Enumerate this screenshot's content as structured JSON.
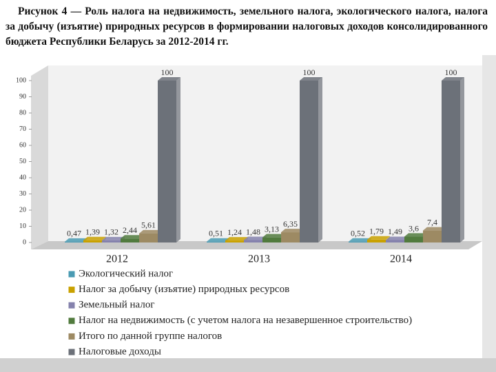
{
  "chart_data": {
    "type": "bar",
    "title": "Рисунок 4 — Роль налога на недвижимость, земельного налога, экологического налога, налога за добычу (изъятие) природных ресурсов в формировании налоговых доходов консолидированного бюджета Республики Беларусь за 2012-2014 гг.",
    "categories": [
      "2012",
      "2013",
      "2014"
    ],
    "series": [
      {
        "name": "Экологический налог",
        "color": "#4a9bb3",
        "values": [
          0.47,
          0.51,
          0.52
        ],
        "value_labels": [
          "0,47",
          "0,51",
          "0,52"
        ]
      },
      {
        "name": "Налог за добычу (изъятие) природных ресурсов",
        "color": "#c9a100",
        "values": [
          1.39,
          1.24,
          1.79
        ],
        "value_labels": [
          "1,39",
          "1,24",
          "1,79"
        ]
      },
      {
        "name": "Земельный налог",
        "color": "#8582ad",
        "values": [
          1.32,
          1.48,
          1.49
        ],
        "value_labels": [
          "1,32",
          "1,48",
          "1,49"
        ]
      },
      {
        "name": "Налог на недвижимость (с учетом налога на незавершенное строительство)",
        "color": "#517b3e",
        "values": [
          2.44,
          3.13,
          3.6
        ],
        "value_labels": [
          "2,44",
          "3,13",
          "3,6"
        ]
      },
      {
        "name": "Итого по данной группе налогов",
        "color": "#9d8a63",
        "values": [
          5.61,
          6.35,
          7.4
        ],
        "value_labels": [
          "5,61",
          "6,35",
          "7,4"
        ]
      },
      {
        "name": "Налоговые доходы",
        "color": "#6c7179",
        "values": [
          100,
          100,
          100
        ],
        "value_labels": [
          "100",
          "100",
          "100"
        ]
      }
    ],
    "ylim": [
      0,
      100
    ],
    "yticks": [
      0,
      10,
      20,
      30,
      40,
      50,
      60,
      70,
      80,
      90,
      100
    ],
    "grid": false
  }
}
